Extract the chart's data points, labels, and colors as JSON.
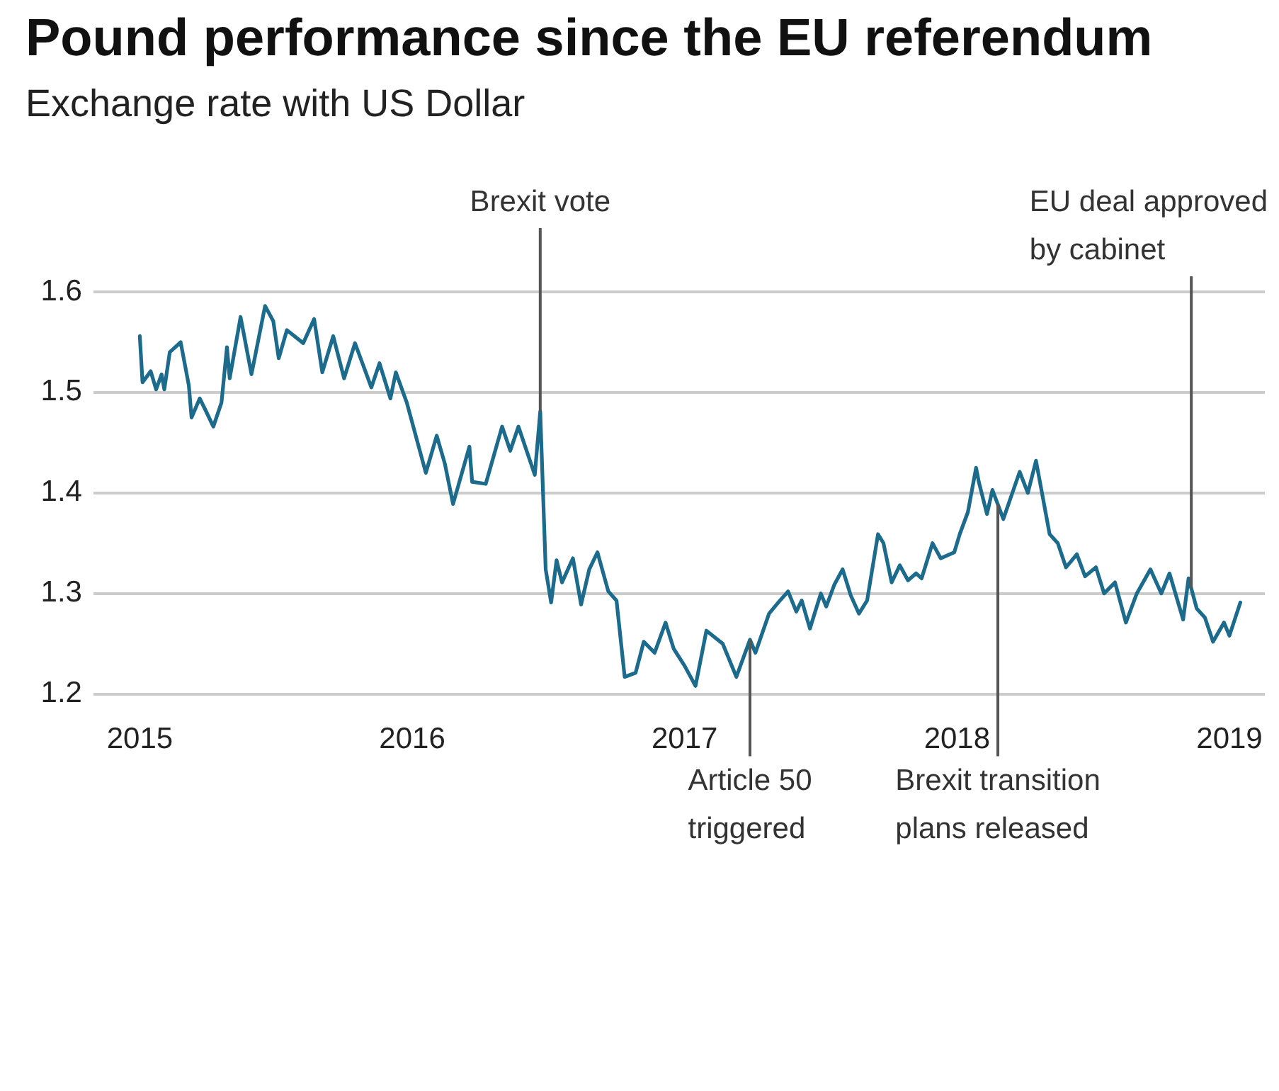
{
  "chart_data": {
    "type": "line",
    "title": "Pound performance since the EU referendum",
    "subtitle": "Exchange rate with US Dollar",
    "series": [
      {
        "color": "#1d6b8c",
        "x": [
          2015.0,
          2015.01,
          2015.04,
          2015.06,
          2015.08,
          2015.09,
          2015.11,
          2015.15,
          2015.18,
          2015.19,
          2015.22,
          2015.24,
          2015.27,
          2015.3,
          2015.32,
          2015.33,
          2015.37,
          2015.41,
          2015.46,
          2015.49,
          2015.51,
          2015.54,
          2015.6,
          2015.64,
          2015.67,
          2015.71,
          2015.75,
          2015.79,
          2015.85,
          2015.88,
          2015.92,
          2015.94,
          2015.98,
          2016.05,
          2016.09,
          2016.12,
          2016.15,
          2016.21,
          2016.22,
          2016.27,
          2016.33,
          2016.36,
          2016.39,
          2016.45,
          2016.47,
          2016.49,
          2016.51,
          2016.53,
          2016.55,
          2016.59,
          2016.62,
          2016.65,
          2016.68,
          2016.72,
          2016.75,
          2016.78,
          2016.82,
          2016.85,
          2016.89,
          2016.93,
          2016.96,
          2017.0,
          2017.04,
          2017.08,
          2017.14,
          2017.19,
          2017.24,
          2017.26,
          2017.31,
          2017.35,
          2017.38,
          2017.41,
          2017.43,
          2017.46,
          2017.5,
          2017.52,
          2017.55,
          2017.58,
          2017.61,
          2017.64,
          2017.67,
          2017.71,
          2017.73,
          2017.76,
          2017.79,
          2017.82,
          2017.85,
          2017.87,
          2017.91,
          2017.94,
          2017.99,
          2018.01,
          2018.04,
          2018.07,
          2018.08,
          2018.11,
          2018.13,
          2018.17,
          2018.23,
          2018.26,
          2018.29,
          2018.34,
          2018.37,
          2018.4,
          2018.44,
          2018.47,
          2018.51,
          2018.54,
          2018.58,
          2018.62,
          2018.66,
          2018.71,
          2018.75,
          2018.78,
          2018.83,
          2018.85,
          2018.88,
          2018.91,
          2018.94,
          2018.98,
          2019.0,
          2019.04
        ],
        "values": [
          1.556,
          1.51,
          1.521,
          1.503,
          1.518,
          1.503,
          1.54,
          1.55,
          1.507,
          1.475,
          1.494,
          1.483,
          1.466,
          1.49,
          1.545,
          1.514,
          1.575,
          1.518,
          1.586,
          1.571,
          1.534,
          1.562,
          1.549,
          1.573,
          1.52,
          1.556,
          1.514,
          1.549,
          1.505,
          1.529,
          1.494,
          1.52,
          1.49,
          1.42,
          1.457,
          1.429,
          1.389,
          1.446,
          1.411,
          1.409,
          1.466,
          1.442,
          1.466,
          1.418,
          1.481,
          1.324,
          1.291,
          1.333,
          1.311,
          1.335,
          1.289,
          1.324,
          1.341,
          1.302,
          1.293,
          1.217,
          1.221,
          1.252,
          1.241,
          1.271,
          1.245,
          1.228,
          1.208,
          1.263,
          1.25,
          1.217,
          1.254,
          1.241,
          1.28,
          1.293,
          1.302,
          1.282,
          1.293,
          1.265,
          1.3,
          1.287,
          1.309,
          1.324,
          1.298,
          1.28,
          1.293,
          1.359,
          1.35,
          1.311,
          1.328,
          1.313,
          1.32,
          1.315,
          1.35,
          1.335,
          1.341,
          1.359,
          1.381,
          1.425,
          1.411,
          1.379,
          1.403,
          1.374,
          1.421,
          1.4,
          1.432,
          1.359,
          1.35,
          1.326,
          1.339,
          1.317,
          1.326,
          1.3,
          1.311,
          1.271,
          1.3,
          1.324,
          1.3,
          1.32,
          1.274,
          1.315,
          1.285,
          1.276,
          1.252,
          1.271,
          1.258,
          1.291
        ]
      }
    ],
    "xlim": [
      2014.83,
      2019.13
    ],
    "xticks": [
      2015,
      2016,
      2017,
      2018,
      2019
    ],
    "ylim": [
      1.2,
      1.6
    ],
    "yticks": [
      1.2,
      1.3,
      1.4,
      1.5,
      1.6
    ],
    "grid": "y",
    "legend": false,
    "marker": "none",
    "line_style": "solid",
    "ref_lines": [
      {
        "axis": "x",
        "value": 2016.47,
        "label": "Brexit vote",
        "color": "#555555"
      },
      {
        "axis": "x",
        "value": 2017.24,
        "label": "Article 50\ntriggered",
        "color": "#555555"
      },
      {
        "axis": "x",
        "value": 2018.15,
        "label": "Brexit transition\nplans released",
        "color": "#555555"
      },
      {
        "axis": "x",
        "value": 2018.86,
        "label": "EU deal approved\nby cabinet",
        "color": "#555555"
      }
    ]
  }
}
